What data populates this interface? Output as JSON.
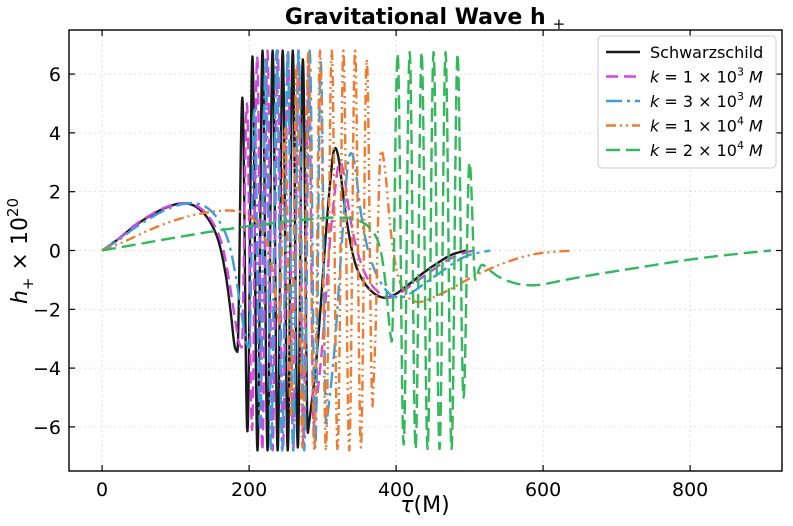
{
  "chart_data": {
    "type": "line",
    "title": "Gravitational Wave h",
    "title_subscript": "+",
    "xlabel_symbol": "τ",
    "xlabel_unit": "(M)",
    "ylabel_symbol": "h",
    "ylabel_subscript": "+",
    "ylabel_factor": "× 10",
    "ylabel_exponent": "20",
    "xlim": [
      -45,
      925
    ],
    "ylim": [
      -7.5,
      7.5
    ],
    "xticks": [
      0,
      200,
      400,
      600,
      800
    ],
    "xtick_labels": [
      "0",
      "200",
      "400",
      "600",
      "800"
    ],
    "yticks": [
      -6,
      -4,
      -2,
      0,
      2,
      4,
      6
    ],
    "ytick_labels": [
      "−6",
      "−4",
      "−2",
      "0",
      "2",
      "4",
      "6"
    ],
    "grid": true,
    "legend_position": "top-right",
    "series": [
      {
        "name": "Schwarzschild",
        "color": "#1a1a1a",
        "dash": "solid",
        "legend_label": {
          "text": "Schwarzschild"
        },
        "segments": [
          {
            "type": "smooth",
            "points": [
              [
                0,
                0
              ],
              [
                20,
                0.35
              ],
              [
                40,
                0.75
              ],
              [
                60,
                1.1
              ],
              [
                80,
                1.38
              ],
              [
                100,
                1.57
              ],
              [
                115,
                1.6
              ],
              [
                130,
                1.45
              ],
              [
                145,
                1.05
              ],
              [
                158,
                0.35
              ],
              [
                168,
                -0.8
              ],
              [
                175,
                -2.1
              ],
              [
                180,
                -3.2
              ],
              [
                184,
                -3.45
              ]
            ]
          },
          {
            "type": "osc",
            "x0": 184,
            "x1": 280,
            "y0": -3.45,
            "peaks": [
              5.2,
              -6.15,
              6.6,
              -6.8,
              6.8,
              -6.8,
              6.8,
              -6.8,
              6.8,
              -6.8,
              6.8,
              -6.7,
              6.5,
              -6.2
            ]
          },
          {
            "type": "smooth",
            "points": [
              [
                280,
                -6.2
              ],
              [
                292,
                -3.6
              ],
              [
                304,
                0.4
              ],
              [
                311,
                2.5
              ],
              [
                316,
                3.45
              ],
              [
                322,
                3.1
              ],
              [
                330,
                1.5
              ],
              [
                340,
                0
              ],
              [
                350,
                -0.8
              ],
              [
                365,
                -1.35
              ],
              [
                382,
                -1.6
              ],
              [
                398,
                -1.5
              ],
              [
                415,
                -1.2
              ],
              [
                435,
                -0.8
              ],
              [
                455,
                -0.45
              ],
              [
                475,
                -0.15
              ],
              [
                495,
                0
              ]
            ]
          }
        ]
      },
      {
        "name": "k = 1 × 10^3 M",
        "color": "#d345e0",
        "dash": "12 6",
        "legend_label": {
          "pre": "k = 1 × 10",
          "exp": "3",
          "post": " M"
        },
        "segments": [
          {
            "type": "smooth",
            "points": [
              [
                0,
                0
              ],
              [
                20,
                0.35
              ],
              [
                40,
                0.78
              ],
              [
                60,
                1.12
              ],
              [
                80,
                1.4
              ],
              [
                100,
                1.58
              ],
              [
                118,
                1.6
              ],
              [
                133,
                1.45
              ],
              [
                148,
                1.05
              ],
              [
                162,
                0.3
              ],
              [
                172,
                -0.9
              ],
              [
                180,
                -2.2
              ],
              [
                186,
                -3.1
              ],
              [
                190,
                -3.3
              ]
            ]
          },
          {
            "type": "osc",
            "x0": 190,
            "x1": 288,
            "y0": -3.3,
            "peaks": [
              5.0,
              -6.1,
              6.6,
              -6.8,
              6.8,
              -6.8,
              6.8,
              -6.8,
              6.8,
              -6.8,
              6.8,
              -6.7,
              6.4,
              -6.0
            ]
          },
          {
            "type": "smooth",
            "points": [
              [
                288,
                -6.0
              ],
              [
                299,
                -3.4
              ],
              [
                310,
                0.3
              ],
              [
                318,
                2.3
              ],
              [
                323,
                3.0
              ],
              [
                329,
                2.6
              ],
              [
                337,
                1.2
              ],
              [
                347,
                0
              ],
              [
                360,
                -0.9
              ],
              [
                375,
                -1.4
              ],
              [
                390,
                -1.6
              ],
              [
                405,
                -1.45
              ],
              [
                425,
                -1.1
              ],
              [
                445,
                -0.75
              ],
              [
                465,
                -0.4
              ],
              [
                485,
                -0.15
              ],
              [
                505,
                0
              ]
            ]
          }
        ]
      },
      {
        "name": "k = 3 × 10^3 M",
        "color": "#3b9fd9",
        "dash": "16 5 3 5",
        "legend_label": {
          "pre": "k = 3 × 10",
          "exp": "3",
          "post": " M"
        },
        "segments": [
          {
            "type": "smooth",
            "points": [
              [
                0,
                0
              ],
              [
                22,
                0.35
              ],
              [
                45,
                0.78
              ],
              [
                67,
                1.12
              ],
              [
                88,
                1.4
              ],
              [
                110,
                1.58
              ],
              [
                128,
                1.6
              ],
              [
                143,
                1.45
              ],
              [
                158,
                1.05
              ],
              [
                172,
                0.3
              ],
              [
                182,
                -0.9
              ],
              [
                190,
                -2.2
              ],
              [
                196,
                -3.1
              ],
              [
                200,
                -3.3
              ]
            ]
          },
          {
            "type": "osc",
            "x0": 200,
            "x1": 305,
            "y0": -3.3,
            "peaks": [
              4.8,
              -6.0,
              6.5,
              -6.8,
              6.8,
              -6.8,
              6.8,
              -6.8,
              6.8,
              -6.8,
              6.8,
              -6.7,
              6.4,
              -6.0
            ]
          },
          {
            "type": "smooth",
            "points": [
              [
                305,
                -6.0
              ],
              [
                316,
                -3.4
              ],
              [
                326,
                0.2
              ],
              [
                333,
                2.6
              ],
              [
                338,
                3.3
              ],
              [
                344,
                2.9
              ],
              [
                352,
                1.3
              ],
              [
                362,
                0
              ],
              [
                375,
                -0.9
              ],
              [
                390,
                -1.45
              ],
              [
                405,
                -1.6
              ],
              [
                420,
                -1.45
              ],
              [
                440,
                -1.1
              ],
              [
                460,
                -0.75
              ],
              [
                480,
                -0.4
              ],
              [
                500,
                -0.15
              ],
              [
                528,
                0
              ]
            ]
          }
        ]
      },
      {
        "name": "k = 1 × 10^4 M",
        "color": "#f07a2e",
        "dash": "10 4 2 4 2 4",
        "legend_label": {
          "pre": "k = 1 × 10",
          "exp": "4",
          "post": " M"
        },
        "segments": [
          {
            "type": "smooth",
            "points": [
              [
                0,
                0
              ],
              [
                30,
                0.3
              ],
              [
                60,
                0.65
              ],
              [
                90,
                0.95
              ],
              [
                120,
                1.18
              ],
              [
                150,
                1.32
              ],
              [
                175,
                1.36
              ],
              [
                195,
                1.25
              ],
              [
                212,
                0.9
              ],
              [
                225,
                0.2
              ],
              [
                233,
                -0.9
              ],
              [
                238,
                -2.0
              ],
              [
                241,
                -2.5
              ]
            ]
          },
          {
            "type": "osc",
            "x0": 241,
            "x1": 368,
            "y0": -2.5,
            "peaks": [
              4.2,
              -5.6,
              6.3,
              -6.7,
              6.8,
              -6.8,
              6.8,
              -6.8,
              6.8,
              -6.8,
              6.8,
              -6.8,
              6.8,
              -6.7,
              6.5,
              -5.3
            ]
          },
          {
            "type": "smooth",
            "points": [
              [
                368,
                -5.3
              ],
              [
                372,
                -2.8
              ],
              [
                375,
                0.5
              ],
              [
                378,
                3.0
              ],
              [
                381,
                3.35
              ],
              [
                386,
                2.5
              ],
              [
                393,
                0.6
              ],
              [
                402,
                -0.8
              ],
              [
                415,
                -1.55
              ],
              [
                430,
                -1.75
              ],
              [
                450,
                -1.6
              ],
              [
                475,
                -1.3
              ],
              [
                500,
                -0.95
              ],
              [
                525,
                -0.65
              ],
              [
                550,
                -0.4
              ],
              [
                575,
                -0.2
              ],
              [
                600,
                -0.08
              ],
              [
                640,
                0
              ]
            ]
          }
        ]
      },
      {
        "name": "k = 2 × 10^4 M",
        "color": "#33b85c",
        "dash": "14 6",
        "legend_label": {
          "pre": "k = 2 × 10",
          "exp": "4",
          "post": " M"
        },
        "segments": [
          {
            "type": "smooth",
            "points": [
              [
                0,
                0
              ],
              [
                50,
                0.22
              ],
              [
                100,
                0.44
              ],
              [
                150,
                0.65
              ],
              [
                200,
                0.83
              ],
              [
                250,
                0.98
              ],
              [
                290,
                1.08
              ],
              [
                320,
                1.12
              ],
              [
                345,
                1.05
              ],
              [
                365,
                0.75
              ],
              [
                378,
                0.1
              ],
              [
                386,
                -1.2
              ],
              [
                391,
                -2.6
              ],
              [
                394,
                -3.1
              ]
            ]
          },
          {
            "type": "osc",
            "x0": 394,
            "x1": 508,
            "y0": -3.1,
            "peaks": [
              6.7,
              -6.6,
              6.75,
              -6.75,
              6.75,
              -6.75,
              6.75,
              -6.75,
              6.75,
              -6.75,
              6.7,
              -5.0,
              3.0,
              -1.0
            ]
          },
          {
            "type": "smooth",
            "points": [
              [
                508,
                -1.0
              ],
              [
                516,
                -0.5
              ],
              [
                526,
                -0.65
              ],
              [
                540,
                -0.9
              ],
              [
                560,
                -1.1
              ],
              [
                580,
                -1.18
              ],
              [
                600,
                -1.15
              ],
              [
                630,
                -1.0
              ],
              [
                670,
                -0.82
              ],
              [
                720,
                -0.62
              ],
              [
                770,
                -0.42
              ],
              [
                820,
                -0.24
              ],
              [
                870,
                -0.1
              ],
              [
                910,
                0
              ]
            ]
          }
        ]
      }
    ]
  }
}
